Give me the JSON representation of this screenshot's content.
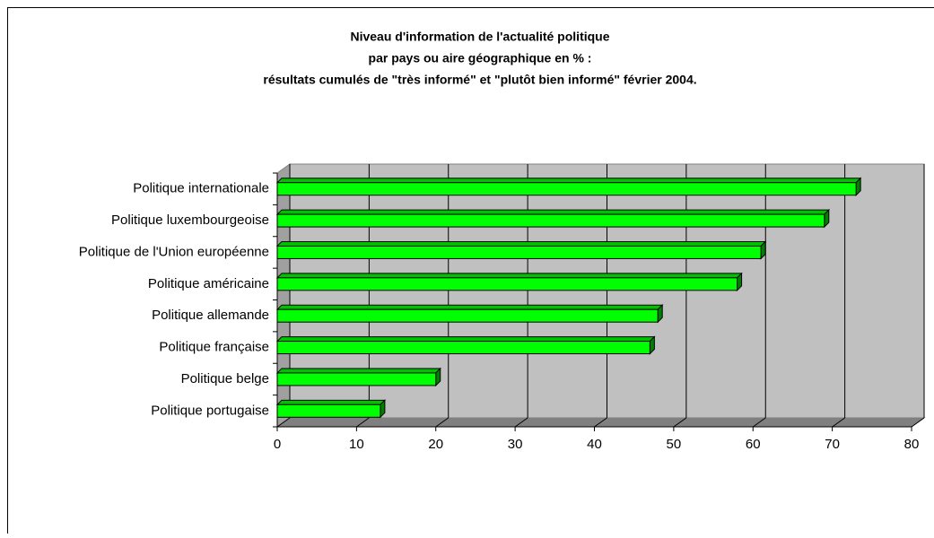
{
  "chart_data": {
    "type": "bar3d_horizontal",
    "title": [
      "Niveau d'information de l'actualité politique",
      "par pays ou aire géographique en % :",
      "résultats cumulés de \"très informé\" et \"plutôt bien informé\" février 2004."
    ],
    "categories": [
      "Politique internationale",
      "Politique luxembourgeoise",
      "Politique de l'Union européenne",
      "Politique américaine",
      "Politique allemande",
      "Politique française",
      "Politique belge",
      "Politique portugaise"
    ],
    "values": [
      73,
      69,
      61,
      58,
      48,
      47,
      20,
      13
    ],
    "color": "#00ff00",
    "xlim": [
      0,
      80
    ],
    "xticks": [
      0,
      10,
      20,
      30,
      40,
      50,
      60,
      70,
      80
    ],
    "grid": true
  }
}
